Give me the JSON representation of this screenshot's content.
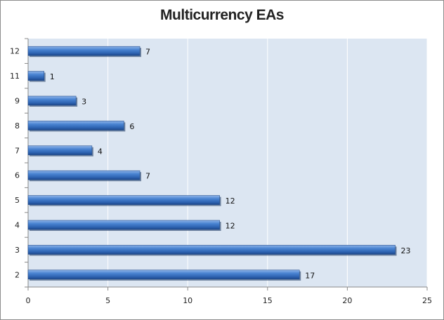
{
  "chart_data": {
    "type": "bar",
    "orientation": "horizontal",
    "title": "Multicurrency EAs",
    "categories": [
      "2",
      "3",
      "4",
      "5",
      "6",
      "7",
      "8",
      "9",
      "11",
      "12"
    ],
    "values": [
      17,
      23,
      12,
      12,
      7,
      4,
      6,
      3,
      1,
      7
    ],
    "xlim": [
      0,
      25
    ],
    "x_ticks": [
      0,
      5,
      10,
      15,
      20,
      25
    ],
    "grid": true,
    "legend": "none",
    "data_labels": true,
    "colors": {
      "plot_background": "#dce6f2",
      "bar": "#3a74c4",
      "gridline": "#ffffff"
    }
  }
}
